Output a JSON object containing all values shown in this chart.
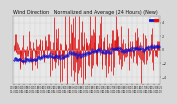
{
  "title": "Wind Direction   Normalized and Average (24 Hours) (New)",
  "title_fontsize": 3.5,
  "background_color": "#d8d8d8",
  "plot_bg_color": "#e8e8e8",
  "bar_color": "#dd1111",
  "line_color": "#1111cc",
  "ylim": [
    -5,
    5
  ],
  "n_points": 300,
  "seed": 42,
  "legend_blue_label": "---",
  "legend_red_label": "---"
}
